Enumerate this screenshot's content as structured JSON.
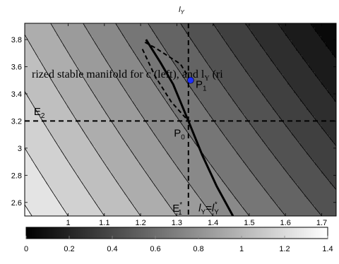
{
  "chart_data": {
    "type": "heatmap",
    "title": "",
    "xlabel": "",
    "ylabel": "",
    "top_label": {
      "base": "l",
      "sub": "Y"
    },
    "xlim": [
      0.88,
      1.74
    ],
    "ylim": [
      2.5,
      3.92
    ],
    "xticks": [
      1,
      1.1,
      1.2,
      1.3,
      1.4,
      1.5,
      1.6,
      1.7
    ],
    "yticks": [
      2.6,
      2.8,
      3,
      3.2,
      3.4,
      3.6,
      3.8
    ],
    "colorbar": {
      "range": [
        0,
        1.4
      ],
      "ticks": [
        0,
        0.2,
        0.4,
        0.6,
        0.8,
        1,
        1.2,
        1.4
      ],
      "colormap": "gray",
      "dark_color": "#000000",
      "light_color": "#ffffff",
      "placement": "bottom"
    },
    "field": {
      "description_free": true,
      "levels": [
        0.1,
        0.2,
        0.3,
        0.4,
        0.5,
        0.6,
        0.7,
        0.8,
        0.9,
        1.0,
        1.1,
        1.2,
        1.3
      ],
      "corner_values": {
        "top_left": 0.98,
        "top_right": 0.02,
        "bottom_left": 1.32,
        "bottom_right": 0.46
      }
    },
    "overlay_text": "rized stable manifold for c (left), and l",
    "overlay_text_sub": "Y",
    "overlay_text_tail": "(ri",
    "reference_lines": {
      "vertical_x": 1.332,
      "horizontal_y": 3.2
    },
    "curves": [
      {
        "name": "",
        "style": "solid",
        "x": [
          1.215,
          1.255,
          1.29,
          1.332,
          1.37,
          1.41,
          1.455
        ],
        "y": [
          3.8,
          3.63,
          3.47,
          3.2,
          2.95,
          2.72,
          2.5
        ]
      },
      {
        "name": "",
        "style": "dashed",
        "x": [
          1.212,
          1.24,
          1.31,
          1.338
        ],
        "y": [
          3.78,
          3.74,
          3.62,
          3.5
        ]
      },
      {
        "name": "",
        "style": "dashed",
        "x": [
          1.205,
          1.24,
          1.285,
          1.332
        ],
        "y": [
          3.73,
          3.53,
          3.34,
          3.2
        ]
      }
    ],
    "points": [
      {
        "label": "P",
        "sub": "1",
        "x": 1.338,
        "y": 3.5,
        "color": "#1f2fff"
      }
    ],
    "annotations": [
      {
        "name": "E2",
        "base": "E",
        "sub": "2",
        "x": 0.905,
        "y": 3.245
      },
      {
        "name": "P1",
        "base": "P",
        "sub": "1",
        "x": 1.352,
        "y": 3.445
      },
      {
        "name": "P0",
        "base": "P",
        "sub": "0",
        "x": 1.292,
        "y": 3.085
      },
      {
        "name": "E1*",
        "base": "E",
        "sub": "1",
        "sup": "*",
        "x": 1.288,
        "y": 2.53
      },
      {
        "name": "lY=lY*",
        "text": "l",
        "sub": "Y",
        "eq": "=l",
        "sub2": "Y",
        "sup2": "*",
        "x": 1.36,
        "y": 2.535
      }
    ]
  }
}
